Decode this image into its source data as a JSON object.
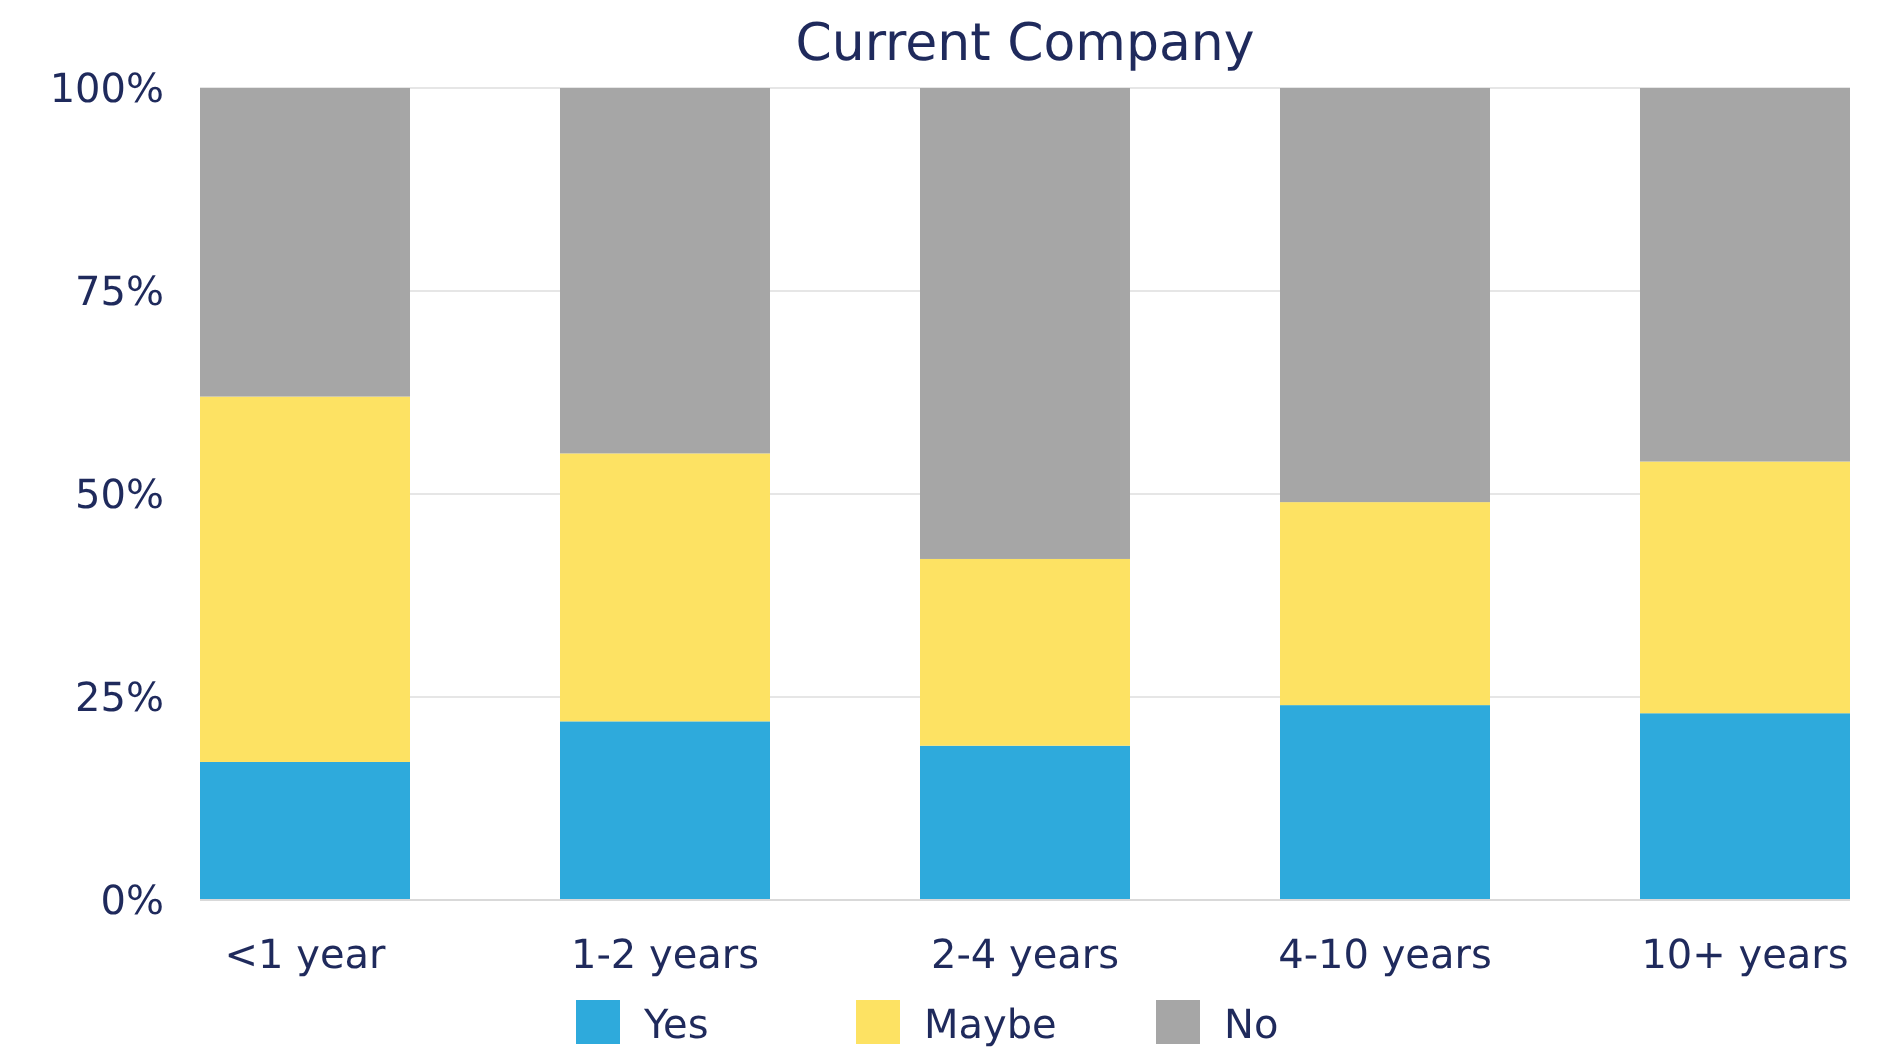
{
  "chart_data": {
    "type": "bar",
    "title": "Current Company",
    "stacked": true,
    "categories": [
      "<1 year",
      "1-2 years",
      "2-4 years",
      "4-10 years",
      "10+ years"
    ],
    "series": [
      {
        "name": "Yes",
        "color": "#2eaadc",
        "values": [
          17,
          22,
          19,
          24,
          23
        ]
      },
      {
        "name": "Maybe",
        "color": "#fde263",
        "values": [
          45,
          33,
          23,
          25,
          31
        ]
      },
      {
        "name": "No",
        "color": "#a6a6a6",
        "values": [
          38,
          45,
          58,
          51,
          46
        ]
      }
    ],
    "ylim": [
      0,
      100
    ],
    "yticks": [
      {
        "value": 0,
        "label": "0%"
      },
      {
        "value": 25,
        "label": "25%"
      },
      {
        "value": 50,
        "label": "50%"
      },
      {
        "value": 75,
        "label": "75%"
      },
      {
        "value": 100,
        "label": "100%"
      }
    ],
    "grid": "y",
    "legend": "bottom"
  }
}
